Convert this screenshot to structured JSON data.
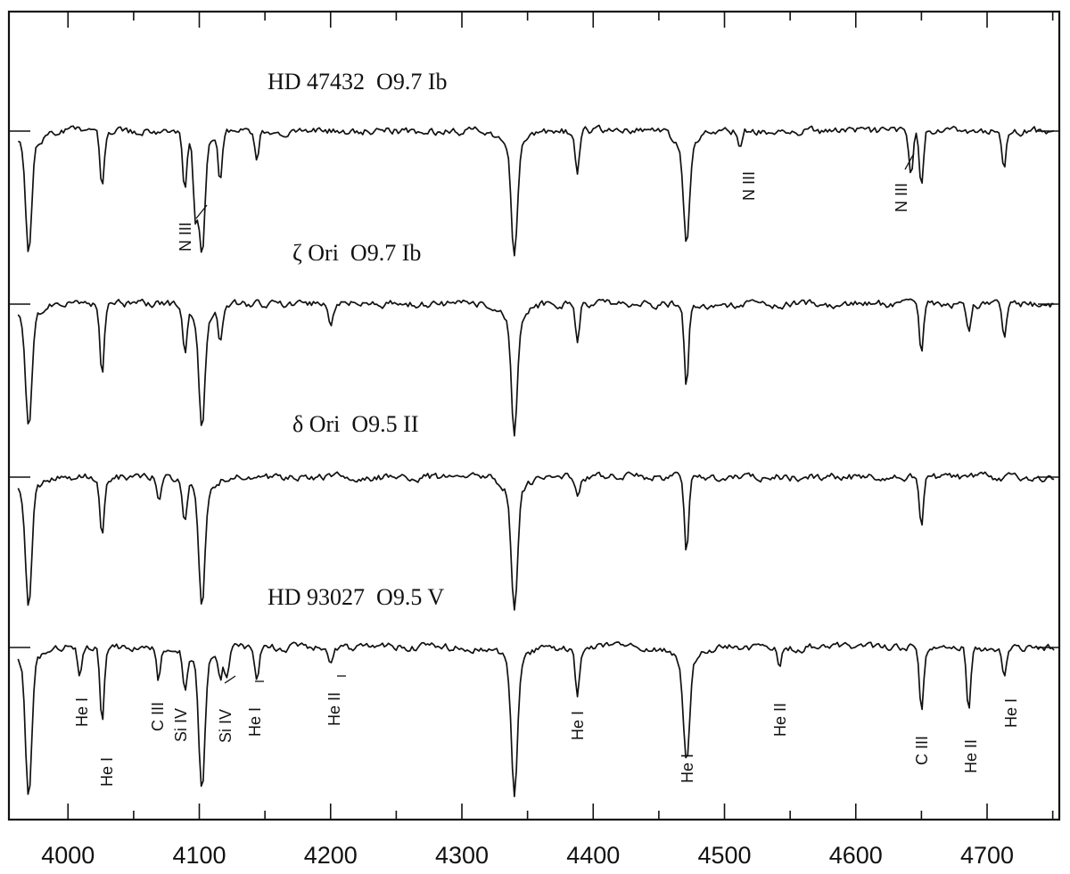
{
  "chart_data": {
    "type": "line",
    "title": "",
    "xlabel": "",
    "ylabel": "",
    "xlim": [
      3955,
      4755
    ],
    "x_ticks": [
      4000,
      4100,
      4200,
      4300,
      4400,
      4500,
      4600,
      4700
    ],
    "x_minor_ticks": [
      4050,
      4150,
      4250,
      4350,
      4450,
      4550,
      4650,
      4750
    ],
    "grid": false,
    "legend": "none",
    "series": [
      {
        "name": "HD 47432  O9.7 Ib",
        "absorption_lines": [
          {
            "wavelength": 3970,
            "depth": 0.78
          },
          {
            "wavelength": 4026,
            "depth": 0.42
          },
          {
            "wavelength": 4089,
            "depth": 0.42
          },
          {
            "wavelength": 4097,
            "depth": 0.5
          },
          {
            "wavelength": 4102,
            "depth": 0.8
          },
          {
            "wavelength": 4116,
            "depth": 0.35
          },
          {
            "wavelength": 4144,
            "depth": 0.22
          },
          {
            "wavelength": 4340,
            "depth": 0.82
          },
          {
            "wavelength": 4388,
            "depth": 0.32
          },
          {
            "wavelength": 4471,
            "depth": 0.72
          },
          {
            "wavelength": 4512,
            "depth": 0.12
          },
          {
            "wavelength": 4642,
            "depth": 0.35
          },
          {
            "wavelength": 4650,
            "depth": 0.4
          },
          {
            "wavelength": 4713,
            "depth": 0.28
          }
        ]
      },
      {
        "name": "ζ Ori  O9.7 Ib",
        "absorption_lines": [
          {
            "wavelength": 3970,
            "depth": 0.82
          },
          {
            "wavelength": 4026,
            "depth": 0.5
          },
          {
            "wavelength": 4089,
            "depth": 0.35
          },
          {
            "wavelength": 4102,
            "depth": 0.8
          },
          {
            "wavelength": 4116,
            "depth": 0.28
          },
          {
            "wavelength": 4200,
            "depth": 0.15
          },
          {
            "wavelength": 4340,
            "depth": 0.85
          },
          {
            "wavelength": 4388,
            "depth": 0.3
          },
          {
            "wavelength": 4471,
            "depth": 0.6
          },
          {
            "wavelength": 4650,
            "depth": 0.4
          },
          {
            "wavelength": 4686,
            "depth": 0.2
          },
          {
            "wavelength": 4713,
            "depth": 0.25
          }
        ]
      },
      {
        "name": "δ Ori  O9.5 II",
        "absorption_lines": [
          {
            "wavelength": 3970,
            "depth": 0.88
          },
          {
            "wavelength": 4026,
            "depth": 0.45
          },
          {
            "wavelength": 4069,
            "depth": 0.2
          },
          {
            "wavelength": 4089,
            "depth": 0.3
          },
          {
            "wavelength": 4102,
            "depth": 0.82
          },
          {
            "wavelength": 4340,
            "depth": 0.9
          },
          {
            "wavelength": 4388,
            "depth": 0.15
          },
          {
            "wavelength": 4471,
            "depth": 0.55
          },
          {
            "wavelength": 4650,
            "depth": 0.35
          }
        ]
      },
      {
        "name": "HD 93027  O9.5 V",
        "absorption_lines": [
          {
            "wavelength": 3970,
            "depth": 1.0
          },
          {
            "wavelength": 4009,
            "depth": 0.22
          },
          {
            "wavelength": 4026,
            "depth": 0.55
          },
          {
            "wavelength": 4069,
            "depth": 0.25
          },
          {
            "wavelength": 4089,
            "depth": 0.3
          },
          {
            "wavelength": 4102,
            "depth": 0.95
          },
          {
            "wavelength": 4116,
            "depth": 0.2
          },
          {
            "wavelength": 4121,
            "depth": 0.22
          },
          {
            "wavelength": 4144,
            "depth": 0.26
          },
          {
            "wavelength": 4200,
            "depth": 0.1
          },
          {
            "wavelength": 4340,
            "depth": 1.0
          },
          {
            "wavelength": 4388,
            "depth": 0.36
          },
          {
            "wavelength": 4471,
            "depth": 0.75
          },
          {
            "wavelength": 4542,
            "depth": 0.18
          },
          {
            "wavelength": 4650,
            "depth": 0.5
          },
          {
            "wavelength": 4686,
            "depth": 0.45
          },
          {
            "wavelength": 4713,
            "depth": 0.22
          }
        ]
      }
    ],
    "annotations": [
      {
        "series": 0,
        "text": "N III",
        "wavelength": 4097
      },
      {
        "series": 0,
        "text": "N III",
        "wavelength": 4512
      },
      {
        "series": 0,
        "text": "N III",
        "wavelength": 4640
      },
      {
        "series": 3,
        "text": "He I",
        "wavelength": 4009
      },
      {
        "series": 3,
        "text": "He I",
        "wavelength": 4026
      },
      {
        "series": 3,
        "text": "C III",
        "wavelength": 4069
      },
      {
        "series": 3,
        "text": "Si IV",
        "wavelength": 4089
      },
      {
        "series": 3,
        "text": "Si IV",
        "wavelength": 4116
      },
      {
        "series": 3,
        "text": "He I",
        "wavelength": 4121
      },
      {
        "series": 3,
        "text": "He II",
        "wavelength": 4200
      },
      {
        "series": 3,
        "text": "He I",
        "wavelength": 4388
      },
      {
        "series": 3,
        "text": "He I",
        "wavelength": 4471
      },
      {
        "series": 3,
        "text": "He II",
        "wavelength": 4542
      },
      {
        "series": 3,
        "text": "C III",
        "wavelength": 4650
      },
      {
        "series": 3,
        "text": "He II",
        "wavelength": 4686
      },
      {
        "series": 3,
        "text": "He I",
        "wavelength": 4713
      }
    ]
  }
}
